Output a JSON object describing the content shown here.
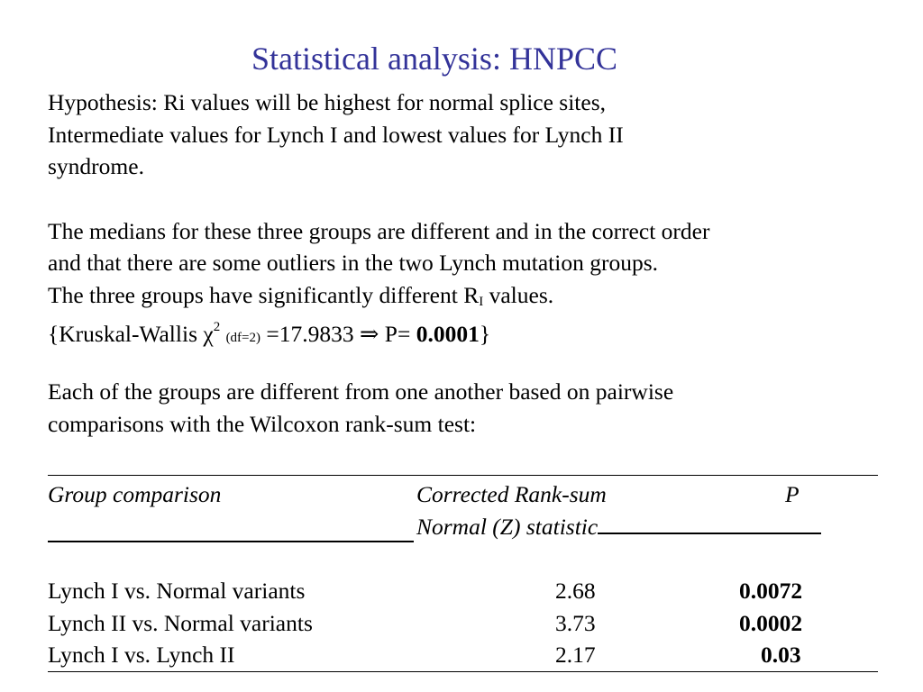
{
  "title": "Statistical analysis: HNPCC",
  "paragraph1": [
    "Hypothesis: Ri values will be highest for normal splice sites,",
    "Intermediate values for Lynch I and lowest values for Lynch II",
    "syndrome."
  ],
  "paragraph2": [
    "The medians for these three groups are different and in the correct order",
    "and that there are some outliers in the two Lynch mutation groups."
  ],
  "significance_line": {
    "prefix": "The three groups have significantly different R",
    "subscript": "I",
    "suffix": " values."
  },
  "kruskal_line": {
    "prefix": "{Kruskal-Wallis χ",
    "superscript": "2",
    "df": "(df=2)",
    "middle": " =17.9833 ⇒ P= ",
    "pvalue": "0.0001",
    "suffix": "}"
  },
  "paragraph3": [
    "Each of the groups are different from one another based on pairwise",
    "comparisons with the Wilcoxon rank-sum test:"
  ],
  "table": {
    "header_col1": "Group comparison",
    "header_col2_line1": "Corrected Rank-sum",
    "header_col2_line2": "Normal (Z) statistic",
    "header_col3": "P",
    "rows": [
      {
        "comparison": "Lynch I vs. Normal variants",
        "z": "2.68",
        "p": "0.0072"
      },
      {
        "comparison": "Lynch II vs. Normal variants",
        "z": "3.73",
        "p": "0.0002"
      },
      {
        "comparison": "Lynch I vs. Lynch II",
        "z": "2.17",
        "p": "0.03"
      }
    ]
  }
}
